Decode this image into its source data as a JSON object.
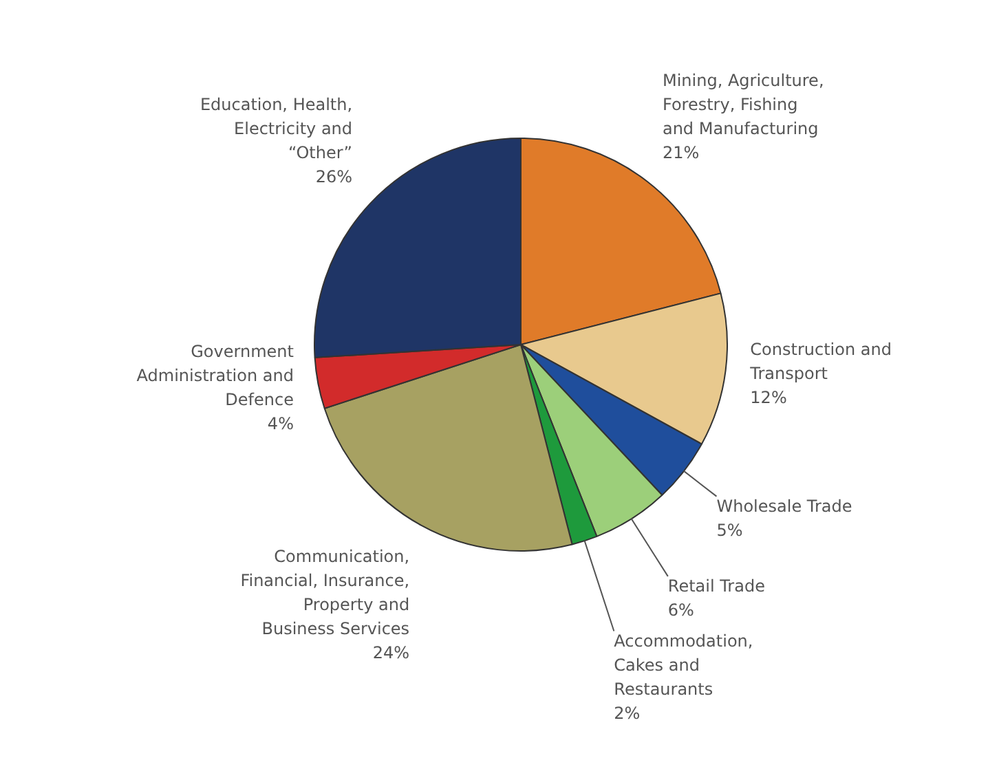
{
  "chart_data": {
    "type": "pie",
    "categories": [
      "Mining, Agriculture,\nForestry, Fishing\nand Manufacturing",
      "Construction and\nTransport",
      "Wholesale Trade",
      "Retail Trade",
      "Accommodation,\nCakes and\nRestaurants",
      "Communication,\nFinancial, Insurance,\nProperty and\nBusiness Services",
      "Government\nAdministration and\nDefence",
      "Education, Health,\nElectricity and\n“Other”"
    ],
    "values": [
      21,
      12,
      5,
      6,
      2,
      24,
      4,
      26
    ],
    "colors": [
      "#e07b29",
      "#e8c98e",
      "#1f4e9c",
      "#9ccf7a",
      "#1e9a3c",
      "#a7a162",
      "#d22b2b",
      "#1f3566"
    ],
    "value_labels": [
      "21%",
      "12%",
      "5%",
      "6%",
      "2%",
      "24%",
      "4%",
      "26%"
    ]
  }
}
